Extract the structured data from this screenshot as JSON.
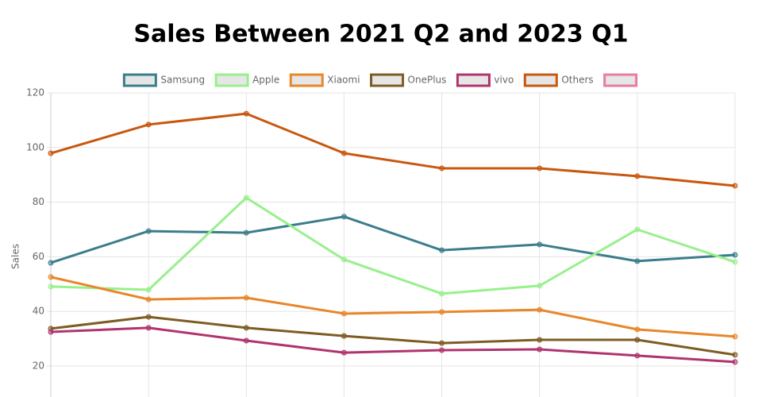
{
  "chart_data": {
    "type": "line",
    "title": "Sales Between 2021 Q2 and 2023 Q1",
    "y_label": "Sales",
    "categories": [
      null,
      null,
      null,
      null,
      null,
      null,
      null,
      null
    ],
    "series": [
      {
        "name": "Samsung",
        "color": "#3b7d8c",
        "values": [
          57.8,
          69.4,
          68.8,
          74.7,
          62.4,
          64.5,
          58.4,
          60.7
        ]
      },
      {
        "name": "Apple",
        "color": "#98f08c",
        "values": [
          49.1,
          47.9,
          81.6,
          59.0,
          46.5,
          49.4,
          70.0,
          58.1
        ]
      },
      {
        "name": "Xiaomi",
        "color": "#e8862a",
        "values": [
          52.6,
          44.4,
          45.0,
          39.2,
          39.8,
          40.6,
          33.4,
          30.8
        ]
      },
      {
        "name": "OnePlus",
        "color": "#7d5c23",
        "values": [
          33.7,
          38.0,
          34.0,
          31.0,
          28.4,
          29.6,
          29.6,
          24.1
        ]
      },
      {
        "name": "vivo",
        "color": "#b0346e",
        "values": [
          32.5,
          34.0,
          29.3,
          24.9,
          25.8,
          26.1,
          23.8,
          21.5
        ]
      },
      {
        "name": "Others",
        "color": "#c8580f",
        "values": [
          97.9,
          108.4,
          112.4,
          97.9,
          92.4,
          92.4,
          89.5,
          86.0
        ]
      },
      {
        "name": null,
        "color": "#e87ca0",
        "values": [
          null,
          null,
          null,
          null,
          null,
          null,
          null,
          null
        ]
      }
    ],
    "ylim": [
      0,
      120
    ],
    "yticks": [
      20,
      40,
      60,
      80,
      100,
      120
    ],
    "grid": true,
    "legend": "top"
  }
}
